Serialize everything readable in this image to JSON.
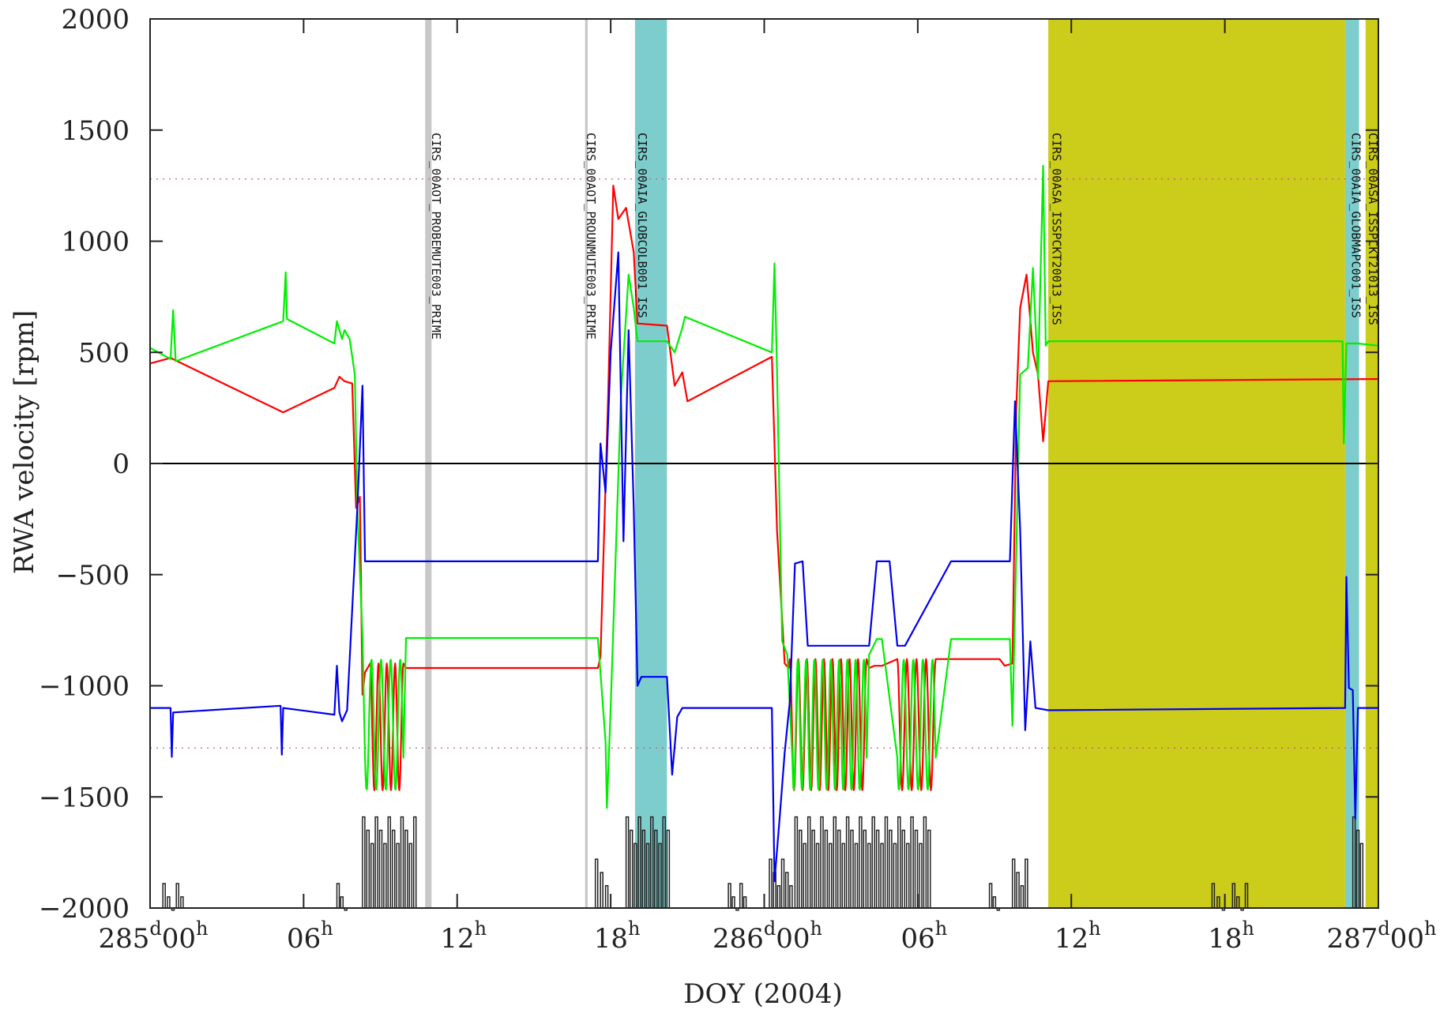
{
  "chart_data": {
    "type": "line",
    "xlabel": "DOY (2004)",
    "ylabel": "RWA velocity [rpm]",
    "xlim": [
      0,
      48
    ],
    "ylim": [
      -2000,
      2000
    ],
    "x_ticks": [
      {
        "x": 0,
        "day": "285",
        "hour": "00"
      },
      {
        "x": 6,
        "day": "",
        "hour": "06"
      },
      {
        "x": 12,
        "day": "",
        "hour": "12"
      },
      {
        "x": 18,
        "day": "",
        "hour": "18"
      },
      {
        "x": 24,
        "day": "286",
        "hour": "00"
      },
      {
        "x": 30,
        "day": "",
        "hour": "06"
      },
      {
        "x": 36,
        "day": "",
        "hour": "12"
      },
      {
        "x": 42,
        "day": "",
        "hour": "18"
      },
      {
        "x": 48,
        "day": "287",
        "hour": "00"
      }
    ],
    "y_ticks": [
      2000,
      1500,
      1000,
      500,
      0,
      -500,
      -1000,
      -1500,
      -2000
    ],
    "limit_lines": [
      1280,
      -1280
    ],
    "colors": {
      "series_red": "#ff0000",
      "series_green": "#00ee00",
      "series_blue": "#0000ee",
      "limit": "#bb5577",
      "gray_band": "#c8c8c8",
      "cyan_band": "#7ecdcd",
      "olive_band": "#cccc1a",
      "activity": "#222222"
    },
    "bands": [
      {
        "x0": 10.75,
        "x1": 11.0,
        "color": "gray"
      },
      {
        "x0": 17.0,
        "x1": 17.1,
        "color": "gray"
      },
      {
        "x0": 18.95,
        "x1": 20.2,
        "color": "cyan"
      },
      {
        "x0": 35.1,
        "x1": 46.7,
        "color": "olive"
      },
      {
        "x0": 46.7,
        "x1": 47.25,
        "color": "cyan"
      },
      {
        "x0": 47.25,
        "x1": 47.5,
        "color": "white"
      },
      {
        "x0": 47.5,
        "x1": 48.0,
        "color": "olive"
      }
    ],
    "labels": [
      {
        "x": 10.9,
        "text": "CIRS_00AOT_PROBEMUTE003_PRIME"
      },
      {
        "x": 16.95,
        "text": "CIRS_00AOT_PROUNMUTE003_PRIME"
      },
      {
        "x": 18.95,
        "text": "CIRS_00AIA_GLOBCOLB001_ISS"
      },
      {
        "x": 35.15,
        "text": "CIRS_00ASA_ISSPCKT20013_ISS"
      },
      {
        "x": 46.85,
        "text": "CIRS_00AIA_GLOBMAPC001_ISS"
      },
      {
        "x": 47.5,
        "text": "CIRS_00ASA_ISSPCKT21013_ISS"
      }
    ],
    "series": [
      {
        "color": "red",
        "points": [
          [
            0,
            450
          ],
          [
            0.8,
            475
          ],
          [
            5.2,
            230
          ],
          [
            7.2,
            340
          ],
          [
            7.4,
            390
          ],
          [
            7.6,
            370
          ],
          [
            7.9,
            360
          ],
          [
            8.05,
            -200
          ],
          [
            8.2,
            -150
          ],
          [
            8.3,
            -1040
          ],
          [
            8.4,
            -940
          ],
          [
            8.7,
            -930
          ],
          [
            9.7,
            -930
          ],
          [
            10.0,
            -920
          ],
          [
            17.5,
            -920
          ],
          [
            17.6,
            -870
          ],
          [
            17.9,
            300
          ],
          [
            18.1,
            1250
          ],
          [
            18.3,
            1100
          ],
          [
            18.6,
            1150
          ],
          [
            18.9,
            950
          ],
          [
            19.05,
            630
          ],
          [
            20.2,
            620
          ],
          [
            20.5,
            350
          ],
          [
            20.8,
            410
          ],
          [
            21.0,
            280
          ],
          [
            24.3,
            480
          ],
          [
            24.5,
            -300
          ],
          [
            24.8,
            -900
          ],
          [
            24.95,
            -920
          ],
          [
            25.2,
            -920
          ],
          [
            28.1,
            -920
          ],
          [
            28.3,
            -910
          ],
          [
            28.6,
            -910
          ],
          [
            29.7,
            -910
          ],
          [
            29.9,
            -890
          ],
          [
            31.5,
            -880
          ],
          [
            33.2,
            -880
          ],
          [
            33.4,
            -910
          ],
          [
            33.7,
            -900
          ],
          [
            33.85,
            250
          ],
          [
            34.0,
            700
          ],
          [
            34.25,
            850
          ],
          [
            34.5,
            500
          ],
          [
            34.7,
            400
          ],
          [
            34.9,
            100
          ],
          [
            35.1,
            370
          ],
          [
            48,
            380
          ]
        ],
        "osc": [
          [
            8.6,
            9.9,
            -900,
            -1470,
            4
          ],
          [
            25.0,
            28.0,
            -880,
            -1470,
            9
          ],
          [
            29.2,
            30.7,
            -880,
            -1470,
            4
          ]
        ]
      },
      {
        "color": "green",
        "points": [
          [
            0,
            520
          ],
          [
            0.8,
            470
          ],
          [
            0.9,
            690
          ],
          [
            1.0,
            460
          ],
          [
            5.2,
            640
          ],
          [
            5.3,
            860
          ],
          [
            5.35,
            650
          ],
          [
            7.2,
            540
          ],
          [
            7.3,
            640
          ],
          [
            7.5,
            560
          ],
          [
            7.6,
            600
          ],
          [
            7.8,
            560
          ],
          [
            8.0,
            400
          ],
          [
            8.1,
            -200
          ],
          [
            8.3,
            -780
          ],
          [
            9.7,
            -780
          ],
          [
            10.0,
            -785
          ],
          [
            17.5,
            -785
          ],
          [
            17.8,
            -1250
          ],
          [
            17.85,
            -1550
          ],
          [
            18.0,
            -1100
          ],
          [
            18.4,
            300
          ],
          [
            18.7,
            850
          ],
          [
            18.9,
            700
          ],
          [
            19.05,
            550
          ],
          [
            20.2,
            550
          ],
          [
            20.5,
            500
          ],
          [
            20.8,
            610
          ],
          [
            20.9,
            660
          ],
          [
            24.3,
            500
          ],
          [
            24.4,
            900
          ],
          [
            24.5,
            420
          ],
          [
            24.7,
            -800
          ],
          [
            24.9,
            -860
          ],
          [
            25.2,
            -860
          ],
          [
            28.1,
            -860
          ],
          [
            28.4,
            -790
          ],
          [
            28.6,
            -790
          ],
          [
            29.7,
            -790
          ],
          [
            29.9,
            -785
          ],
          [
            31.3,
            -790
          ],
          [
            33.6,
            -790
          ],
          [
            33.7,
            -1180
          ],
          [
            34.0,
            400
          ],
          [
            34.3,
            430
          ],
          [
            34.5,
            880
          ],
          [
            34.7,
            380
          ],
          [
            34.9,
            1340
          ],
          [
            35.0,
            530
          ],
          [
            35.1,
            550
          ],
          [
            46.6,
            550
          ],
          [
            46.65,
            90
          ],
          [
            46.75,
            540
          ],
          [
            47.2,
            540
          ],
          [
            48,
            530
          ]
        ],
        "osc": [
          [
            8.4,
            9.9,
            -880,
            -1470,
            4
          ],
          [
            25.1,
            28.0,
            -880,
            -1470,
            9
          ],
          [
            29.2,
            30.7,
            -880,
            -1470,
            4
          ]
        ]
      },
      {
        "color": "blue",
        "points": [
          [
            0,
            -1100
          ],
          [
            0.8,
            -1100
          ],
          [
            0.85,
            -1320
          ],
          [
            0.9,
            -1120
          ],
          [
            5.1,
            -1090
          ],
          [
            5.15,
            -1310
          ],
          [
            5.2,
            -1100
          ],
          [
            7.2,
            -1130
          ],
          [
            7.3,
            -910
          ],
          [
            7.4,
            -1120
          ],
          [
            7.5,
            -1160
          ],
          [
            7.7,
            -1110
          ],
          [
            8.1,
            -200
          ],
          [
            8.3,
            350
          ],
          [
            8.4,
            -440
          ],
          [
            8.7,
            -440
          ],
          [
            9.7,
            -440
          ],
          [
            10.0,
            -440
          ],
          [
            17.5,
            -440
          ],
          [
            17.6,
            90
          ],
          [
            17.8,
            -130
          ],
          [
            18.0,
            500
          ],
          [
            18.3,
            950
          ],
          [
            18.5,
            -350
          ],
          [
            18.7,
            600
          ],
          [
            18.9,
            -200
          ],
          [
            19.05,
            -1000
          ],
          [
            19.2,
            -960
          ],
          [
            20.2,
            -960
          ],
          [
            20.4,
            -1400
          ],
          [
            20.6,
            -1140
          ],
          [
            20.8,
            -1100
          ],
          [
            21.0,
            -1100
          ],
          [
            24.3,
            -1100
          ],
          [
            24.4,
            -1880
          ],
          [
            24.6,
            -1600
          ],
          [
            24.8,
            -1300
          ],
          [
            25.0,
            -1070
          ],
          [
            25.2,
            -450
          ],
          [
            25.5,
            -440
          ],
          [
            25.7,
            -820
          ],
          [
            28.1,
            -820
          ],
          [
            28.4,
            -440
          ],
          [
            28.9,
            -440
          ],
          [
            29.2,
            -820
          ],
          [
            29.5,
            -820
          ],
          [
            31.3,
            -440
          ],
          [
            33.6,
            -440
          ],
          [
            33.8,
            280
          ],
          [
            34.0,
            -300
          ],
          [
            34.2,
            -1200
          ],
          [
            34.4,
            -800
          ],
          [
            34.6,
            -1100
          ],
          [
            35.1,
            -1110
          ],
          [
            46.7,
            -1100
          ],
          [
            46.75,
            -510
          ],
          [
            46.85,
            -1010
          ],
          [
            47.0,
            -1020
          ],
          [
            47.1,
            -1600
          ],
          [
            47.2,
            -1100
          ],
          [
            48,
            -1100
          ]
        ],
        "osc": []
      }
    ],
    "activity": [
      [
        0.5,
        1.2,
        -1890
      ],
      [
        7.3,
        7.6,
        -1890
      ],
      [
        8.3,
        10.3,
        -1590
      ],
      [
        17.4,
        17.8,
        -1780
      ],
      [
        18.6,
        20.2,
        -1590
      ],
      [
        22.6,
        23.2,
        -1890
      ],
      [
        24.2,
        25.0,
        -1780
      ],
      [
        25.2,
        30.4,
        -1590
      ],
      [
        32.8,
        33.1,
        -1890
      ],
      [
        33.7,
        34.2,
        -1780
      ],
      [
        41.5,
        41.9,
        -1890
      ],
      [
        42.3,
        42.8,
        -1890
      ],
      [
        47.0,
        47.3,
        -1590
      ]
    ]
  }
}
